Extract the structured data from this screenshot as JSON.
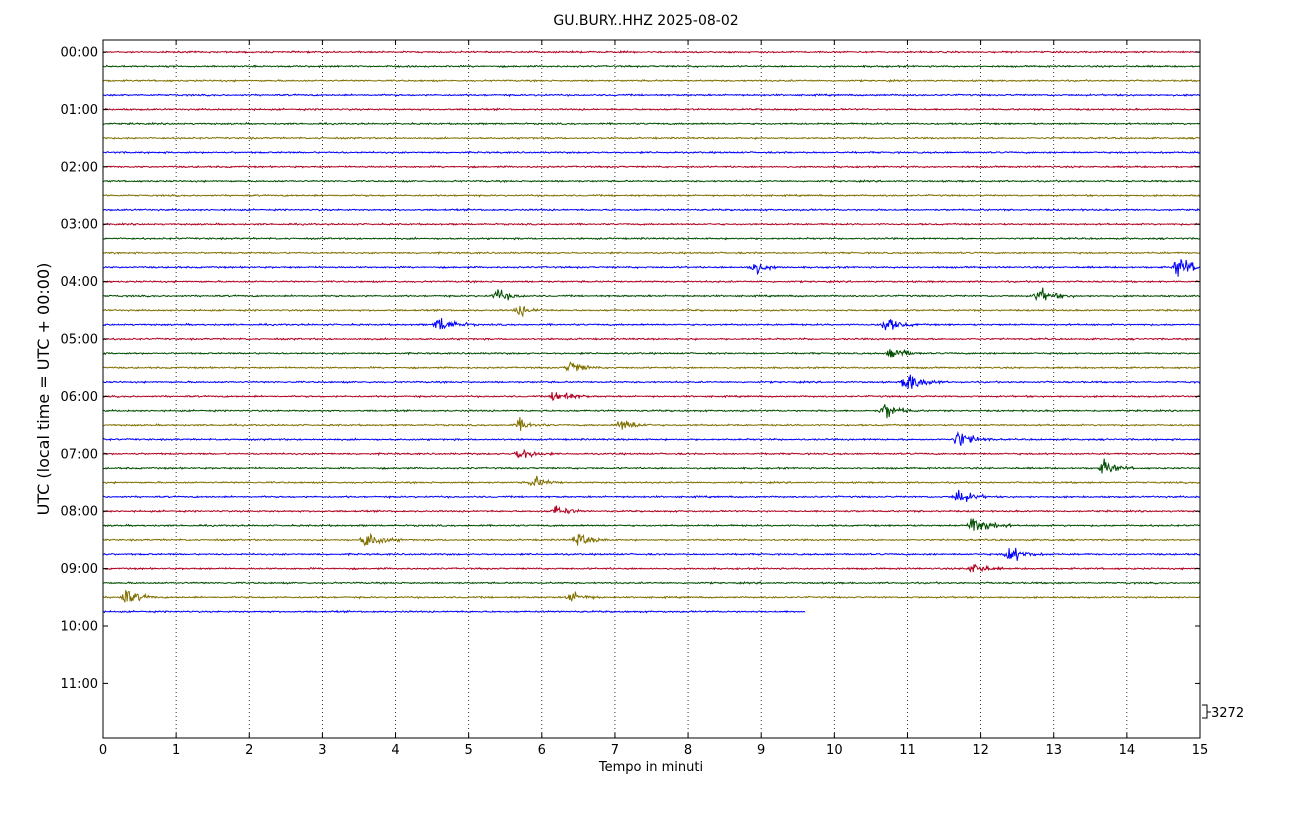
{
  "chart_data": {
    "type": "line",
    "title": "GU.BURY..HHZ 2025-08-02",
    "xlabel": "Tempo in minuti",
    "ylabel": "UTC (local time = UTC + 00:00)",
    "xlim": [
      0,
      15
    ],
    "x_ticks": [
      "0",
      "1",
      "2",
      "3",
      "4",
      "5",
      "6",
      "7",
      "8",
      "9",
      "10",
      "11",
      "12",
      "13",
      "14",
      "15"
    ],
    "y_ticks": [
      "00:00",
      "01:00",
      "02:00",
      "03:00",
      "04:00",
      "05:00",
      "06:00",
      "07:00",
      "08:00",
      "09:00",
      "10:00",
      "11:00"
    ],
    "trace_interval_minutes": 15,
    "trace_colors": [
      "#b00020",
      "#004d00",
      "#807000",
      "#0000ff"
    ],
    "scale_label": "3272",
    "grid": "vertical-dotted",
    "traces_count": 40,
    "last_trace_end_minute": 9.6,
    "events": [
      {
        "trace": 15,
        "minute": 8.9,
        "amp": 1.0,
        "dur": 0.35
      },
      {
        "trace": 15,
        "minute": 14.7,
        "amp": 1.3,
        "dur": 0.6
      },
      {
        "trace": 17,
        "minute": 5.4,
        "amp": 0.8,
        "dur": 0.4
      },
      {
        "trace": 17,
        "minute": 12.8,
        "amp": 0.9,
        "dur": 0.5
      },
      {
        "trace": 18,
        "minute": 5.7,
        "amp": 0.7,
        "dur": 0.35
      },
      {
        "trace": 19,
        "minute": 4.6,
        "amp": 1.0,
        "dur": 0.5
      },
      {
        "trace": 19,
        "minute": 10.7,
        "amp": 1.0,
        "dur": 0.45
      },
      {
        "trace": 21,
        "minute": 10.8,
        "amp": 1.1,
        "dur": 0.4
      },
      {
        "trace": 22,
        "minute": 6.4,
        "amp": 0.9,
        "dur": 0.4
      },
      {
        "trace": 23,
        "minute": 11.0,
        "amp": 1.3,
        "dur": 0.5
      },
      {
        "trace": 24,
        "minute": 6.2,
        "amp": 1.0,
        "dur": 0.45
      },
      {
        "trace": 25,
        "minute": 10.7,
        "amp": 1.0,
        "dur": 0.45
      },
      {
        "trace": 26,
        "minute": 5.7,
        "amp": 0.7,
        "dur": 0.4
      },
      {
        "trace": 26,
        "minute": 7.1,
        "amp": 0.8,
        "dur": 0.45
      },
      {
        "trace": 27,
        "minute": 11.7,
        "amp": 1.1,
        "dur": 0.5
      },
      {
        "trace": 28,
        "minute": 5.7,
        "amp": 0.8,
        "dur": 0.45
      },
      {
        "trace": 29,
        "minute": 13.7,
        "amp": 1.0,
        "dur": 0.4
      },
      {
        "trace": 30,
        "minute": 5.9,
        "amp": 0.8,
        "dur": 0.4
      },
      {
        "trace": 31,
        "minute": 11.7,
        "amp": 1.0,
        "dur": 0.45
      },
      {
        "trace": 32,
        "minute": 6.2,
        "amp": 0.7,
        "dur": 0.4
      },
      {
        "trace": 33,
        "minute": 11.9,
        "amp": 1.3,
        "dur": 0.55
      },
      {
        "trace": 34,
        "minute": 3.6,
        "amp": 1.1,
        "dur": 0.5
      },
      {
        "trace": 34,
        "minute": 6.5,
        "amp": 0.8,
        "dur": 0.45
      },
      {
        "trace": 35,
        "minute": 12.4,
        "amp": 1.1,
        "dur": 0.45
      },
      {
        "trace": 36,
        "minute": 11.9,
        "amp": 0.8,
        "dur": 0.4
      },
      {
        "trace": 38,
        "minute": 0.3,
        "amp": 1.1,
        "dur": 0.45
      },
      {
        "trace": 38,
        "minute": 6.4,
        "amp": 0.7,
        "dur": 0.45
      }
    ]
  }
}
